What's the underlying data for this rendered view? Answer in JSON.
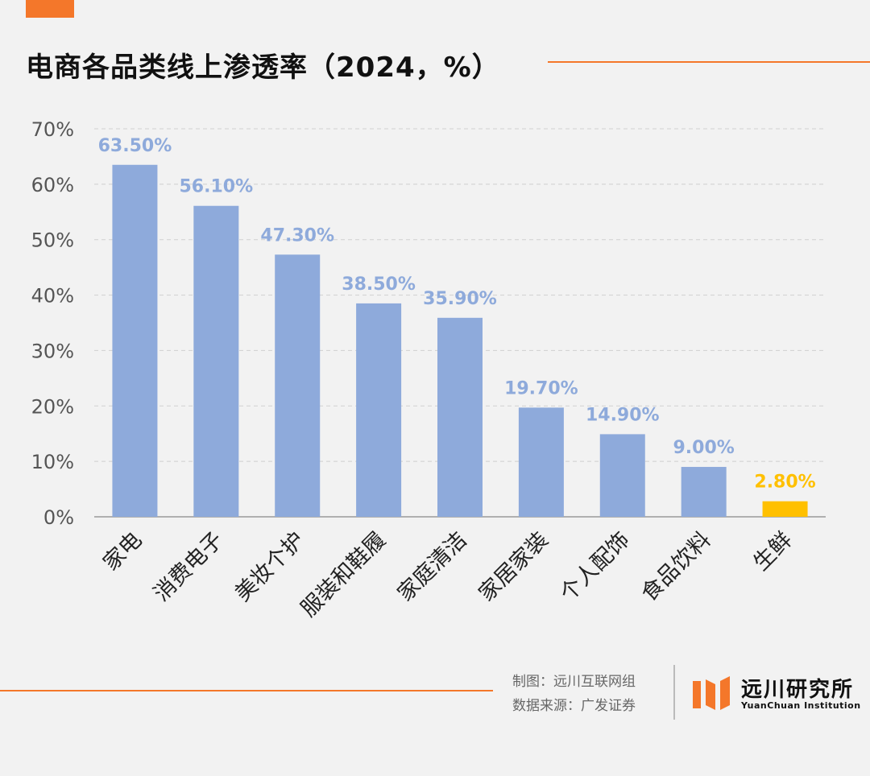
{
  "header": {
    "title": "电商各品类线上渗透率（2024，%）"
  },
  "footer": {
    "credit_maker": "制图：远川互联网组",
    "credit_source": "数据来源：广发证券"
  },
  "logo": {
    "name_cn": "远川研究所",
    "name_en": "YuanChuan Institution"
  },
  "colors": {
    "accent": "#f4772a",
    "bar": "#8eaadb",
    "bar_highlight": "#ffc000",
    "label": "#8eaadb",
    "label_highlight": "#ffc000"
  },
  "chart_data": {
    "type": "bar",
    "title": "电商各品类线上渗透率（2024，%）",
    "xlabel": "",
    "ylabel": "",
    "categories": [
      "家电",
      "消费电子",
      "美妆个护",
      "服装和鞋履",
      "家庭清洁",
      "家居家装",
      "个人配饰",
      "食品饮料",
      "生鲜"
    ],
    "values": [
      63.5,
      56.1,
      47.3,
      38.5,
      35.9,
      19.7,
      14.9,
      9.0,
      2.8
    ],
    "data_labels": [
      "63.50%",
      "56.10%",
      "47.30%",
      "38.50%",
      "35.90%",
      "19.70%",
      "14.90%",
      "9.00%",
      "2.80%"
    ],
    "highlight_index": 8,
    "ylim": [
      0,
      70
    ],
    "yticks": [
      0,
      10,
      20,
      30,
      40,
      50,
      60,
      70
    ],
    "ytick_labels": [
      "0%",
      "10%",
      "20%",
      "30%",
      "40%",
      "50%",
      "60%",
      "70%"
    ],
    "grid": true,
    "legend": "none"
  }
}
